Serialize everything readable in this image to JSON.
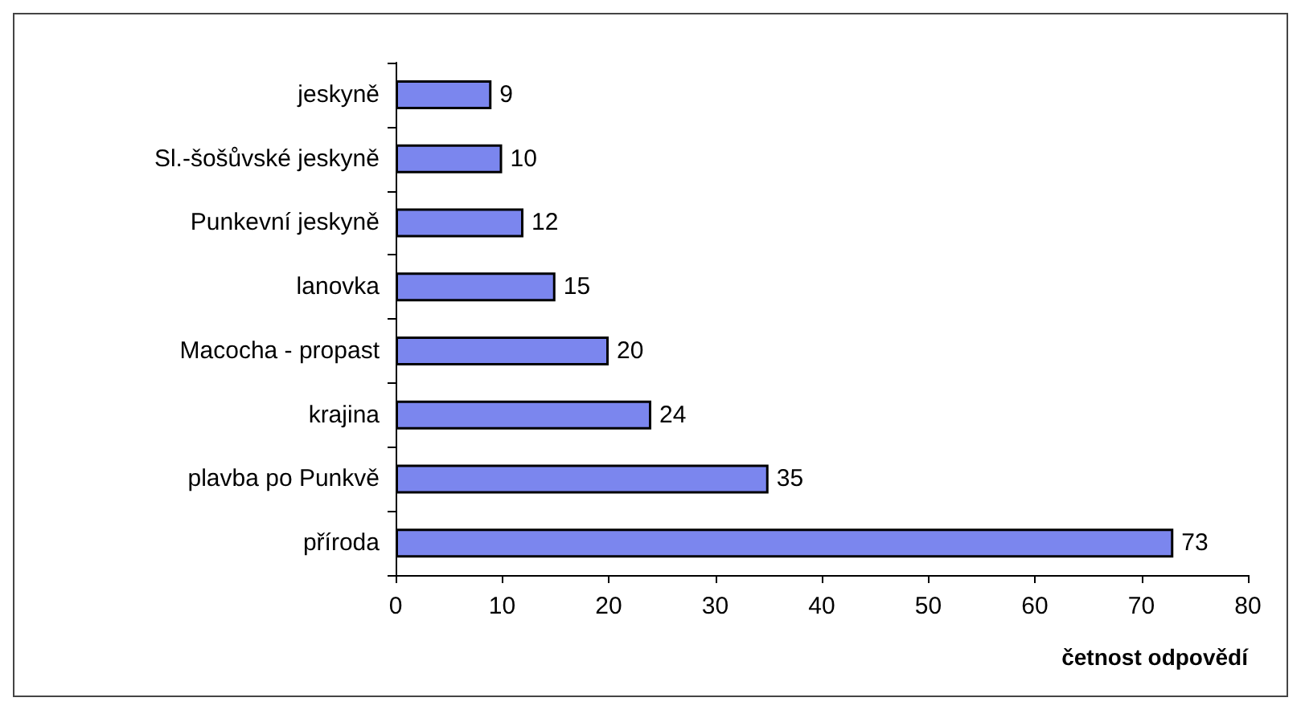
{
  "chart_data": {
    "type": "bar",
    "orientation": "horizontal",
    "categories": [
      "jeskyně",
      "Sl.-šošůvské jeskyně",
      "Punkevní jeskyně",
      "lanovka",
      "Macocha - propast",
      "krajina",
      "plavba po Punkvě",
      "příroda"
    ],
    "values": [
      9,
      10,
      12,
      15,
      20,
      24,
      35,
      73
    ],
    "color": "#7b86ee",
    "data_labels": true,
    "xlabel": "četnost odpovědí",
    "xlim": [
      0,
      80
    ],
    "xticks": [
      0,
      10,
      20,
      30,
      40,
      50,
      60,
      70,
      80
    ],
    "grid": false
  }
}
